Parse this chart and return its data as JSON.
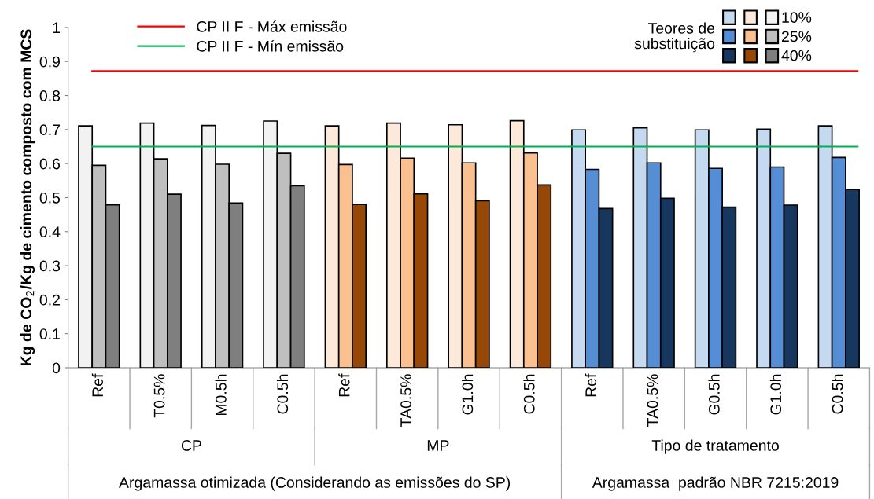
{
  "chart_data": {
    "type": "bar",
    "ylabel": "Kg de CO$_{2}$/Kg de cimento composto com MCS",
    "categories": [
      "Ref",
      "T0.5%",
      "M0.5h",
      "C0.5h",
      "Ref",
      "TA0.5%",
      "G1.0h",
      "C0.5h",
      "Ref",
      "TA0.5%",
      "G0.5h",
      "G1.0h",
      "C0.5h"
    ],
    "series": [
      {
        "name": "10%",
        "colors": [
          "#f2f2f2",
          "#f2f2f2",
          "#f2f2f2",
          "#f2f2f2",
          "#fde9d9",
          "#fde9d9",
          "#fde9d9",
          "#fde9d9",
          "#c5d9f1",
          "#c5d9f1",
          "#c5d9f1",
          "#c5d9f1",
          "#c5d9f1"
        ],
        "values": [
          0.711,
          0.719,
          0.712,
          0.725,
          0.711,
          0.719,
          0.714,
          0.726,
          0.699,
          0.705,
          0.699,
          0.701,
          0.711
        ]
      },
      {
        "name": "25%",
        "colors": [
          "#bfbfbf",
          "#bfbfbf",
          "#bfbfbf",
          "#bfbfbf",
          "#fac090",
          "#fac090",
          "#fac090",
          "#fac090",
          "#558ed5",
          "#558ed5",
          "#558ed5",
          "#558ed5",
          "#558ed5"
        ],
        "values": [
          0.595,
          0.614,
          0.598,
          0.63,
          0.597,
          0.616,
          0.602,
          0.631,
          0.583,
          0.602,
          0.586,
          0.59,
          0.618
        ]
      },
      {
        "name": "40%",
        "colors": [
          "#7f7f7f",
          "#7f7f7f",
          "#7f7f7f",
          "#7f7f7f",
          "#974806",
          "#974806",
          "#974806",
          "#974806",
          "#17375e",
          "#17375e",
          "#17375e",
          "#17375e",
          "#17375e"
        ],
        "values": [
          0.479,
          0.51,
          0.484,
          0.535,
          0.48,
          0.511,
          0.491,
          0.537,
          0.468,
          0.498,
          0.472,
          0.478,
          0.524
        ]
      }
    ],
    "legend_title": "Teores de substituição",
    "legend": "top right",
    "ref_lines": [
      {
        "axis": "y",
        "value": 0.872,
        "label": "CP II F - Máx emissão",
        "color": "#ff0000"
      },
      {
        "axis": "y",
        "value": 0.65,
        "label": "CP II F - Mín emissão",
        "color": "#00b050"
      }
    ],
    "ylim": [
      0,
      1
    ],
    "yticks": [
      0,
      0.1,
      0.2,
      0.3,
      0.4,
      0.5,
      0.6,
      0.7,
      0.8,
      0.9,
      1
    ],
    "grid": false,
    "annotations": [
      "CP",
      "MP",
      "Tipo de tratamento",
      "Argamassa otimizada (Considerando as emissões do SP)",
      "Argamassa  padrão NBR 7215:2019"
    ]
  }
}
